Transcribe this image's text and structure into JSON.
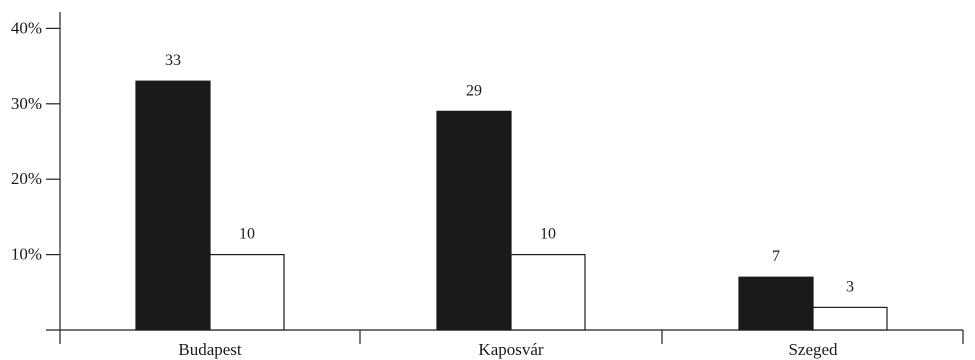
{
  "chart_data": {
    "type": "bar",
    "title": "",
    "xlabel": "",
    "ylabel": "",
    "categories": [
      "Budapest",
      "Kaposvár",
      "Szeged"
    ],
    "series": [
      {
        "values": [
          33,
          29,
          7
        ],
        "color": "#1a1a1a"
      },
      {
        "values": [
          10,
          10,
          3
        ],
        "color": "#ffffff"
      }
    ],
    "data_labels": [
      [
        "33",
        "29",
        "7"
      ],
      [
        "10",
        "10",
        "3"
      ]
    ],
    "y_ticks": [
      {
        "value": 10,
        "label": "10%"
      },
      {
        "value": 20,
        "label": "20%"
      },
      {
        "value": 30,
        "label": "30%"
      },
      {
        "value": 40,
        "label": "40%"
      }
    ],
    "ylim": [
      0,
      40
    ],
    "grid": false,
    "legend": "none"
  }
}
